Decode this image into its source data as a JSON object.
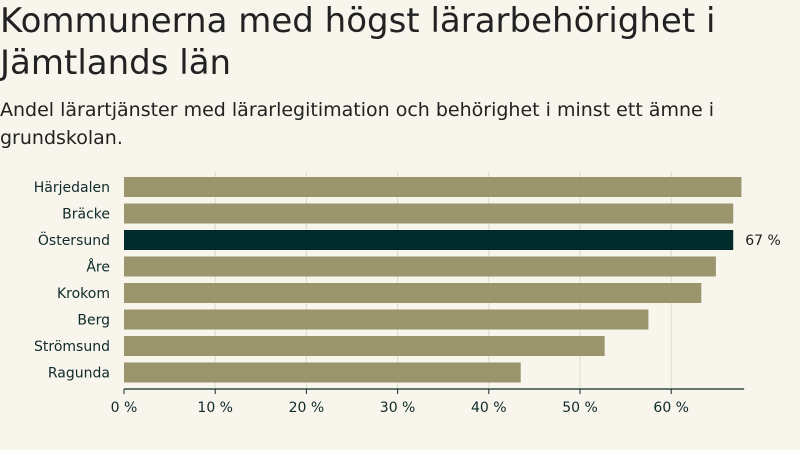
{
  "header": {
    "title": "Kommunerna med högst lärarbehörighet i Jämtlands län",
    "subtitle": "Andel lärartjänster med lärarlegitimation och behörighet i minst ett ämne i grundskolan."
  },
  "colors": {
    "bar": "#9a956d",
    "highlight": "#022b2b",
    "grid": "#dcdad0",
    "axis": "#0f2a2a"
  },
  "chart_data": {
    "type": "bar",
    "orientation": "horizontal",
    "title": "Kommunerna med högst lärarbehörighet i Jämtlands län",
    "subtitle": "Andel lärartjänster med lärarlegitimation och behörighet i minst ett ämne i grundskolan.",
    "categories": [
      "Härjedalen",
      "Bräcke",
      "Östersund",
      "Åre",
      "Krokom",
      "Berg",
      "Strömsund",
      "Ragunda"
    ],
    "values": [
      67.7,
      66.8,
      66.8,
      64.9,
      63.3,
      57.5,
      52.7,
      43.5
    ],
    "highlight": "Östersund",
    "value_labels": {
      "Östersund": "67 %"
    },
    "xlim": [
      0,
      68
    ],
    "xticks": [
      0,
      10,
      20,
      30,
      40,
      50,
      60
    ],
    "xtick_labels": [
      "0 %",
      "10 %",
      "20 %",
      "30 %",
      "40 %",
      "50 %",
      "60 %"
    ],
    "xlabel": "",
    "ylabel": "",
    "grid": true
  }
}
